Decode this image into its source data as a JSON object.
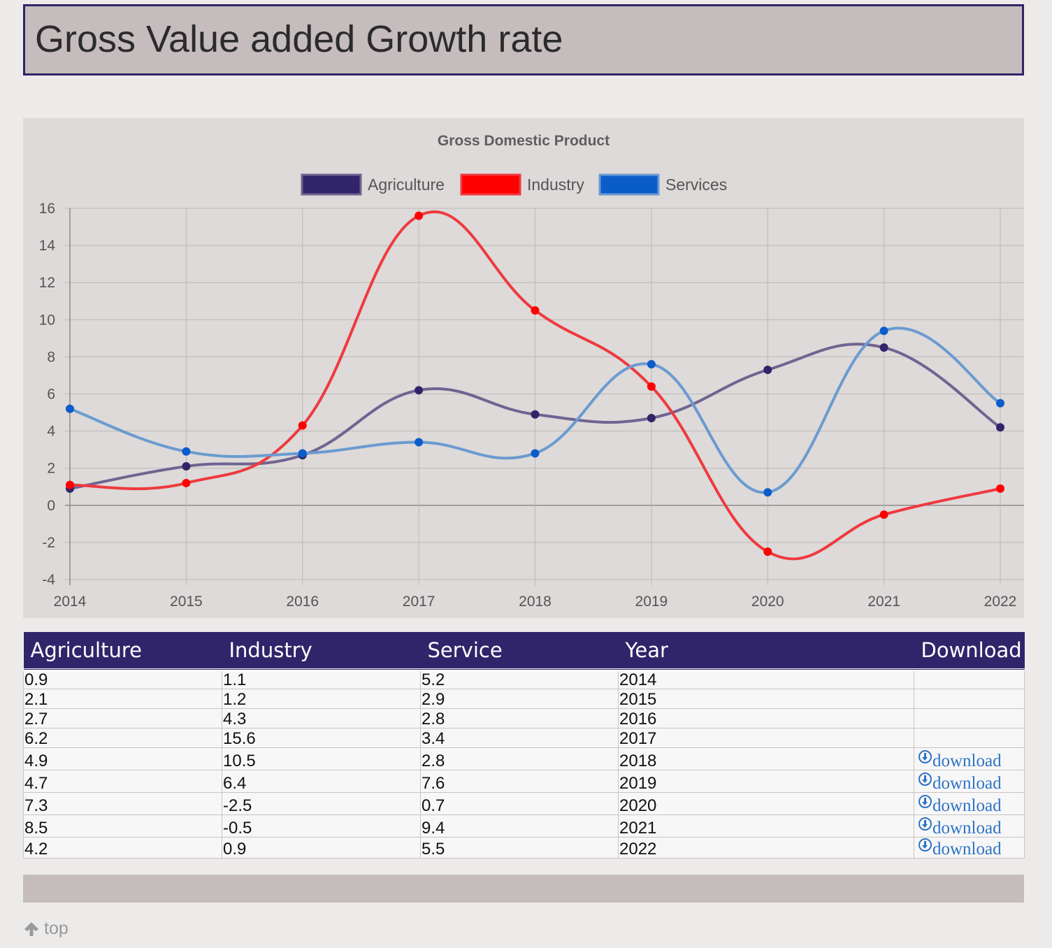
{
  "header": {
    "title": "Gross Value added Growth rate"
  },
  "chart_data": {
    "type": "line",
    "title": "Gross Domestic Product",
    "categories": [
      "2014",
      "2015",
      "2016",
      "2017",
      "2018",
      "2019",
      "2020",
      "2021",
      "2022"
    ],
    "series": [
      {
        "name": "Agriculture",
        "values": [
          0.9,
          2.1,
          2.7,
          6.2,
          4.9,
          4.7,
          7.3,
          8.5,
          4.2
        ],
        "color": "#30256a",
        "line_color": "#716391"
      },
      {
        "name": "Industry",
        "values": [
          1.1,
          1.2,
          4.3,
          15.6,
          10.5,
          6.4,
          -2.5,
          -0.5,
          0.9
        ],
        "color": "#ff0000",
        "line_color": "#ef3a3f"
      },
      {
        "name": "Services",
        "values": [
          5.2,
          2.9,
          2.8,
          3.4,
          2.8,
          7.6,
          0.7,
          9.4,
          5.5
        ],
        "color": "#0b5ccb",
        "line_color": "#6b9bd0"
      }
    ],
    "ylim": [
      -4,
      16
    ],
    "yticks": [
      -4,
      -2,
      0,
      2,
      4,
      6,
      8,
      10,
      12,
      14,
      16
    ],
    "xlabel": "",
    "ylabel": "",
    "grid": true,
    "legend": "top"
  },
  "table": {
    "headers": [
      "Agriculture",
      "Industry",
      "Service",
      "Year",
      "Download"
    ],
    "rows": [
      {
        "agriculture": "0.9",
        "industry": "1.1",
        "service": "5.2",
        "year": "2014",
        "download": ""
      },
      {
        "agriculture": "2.1",
        "industry": "1.2",
        "service": "2.9",
        "year": "2015",
        "download": ""
      },
      {
        "agriculture": "2.7",
        "industry": "4.3",
        "service": "2.8",
        "year": "2016",
        "download": ""
      },
      {
        "agriculture": "6.2",
        "industry": "15.6",
        "service": "3.4",
        "year": "2017",
        "download": ""
      },
      {
        "agriculture": "4.9",
        "industry": "10.5",
        "service": "2.8",
        "year": "2018",
        "download": "download"
      },
      {
        "agriculture": "4.7",
        "industry": "6.4",
        "service": "7.6",
        "year": "2019",
        "download": "download"
      },
      {
        "agriculture": "7.3",
        "industry": "-2.5",
        "service": "0.7",
        "year": "2020",
        "download": "download"
      },
      {
        "agriculture": "8.5",
        "industry": "-0.5",
        "service": "9.4",
        "year": "2021",
        "download": "download"
      },
      {
        "agriculture": "4.2",
        "industry": "0.9",
        "service": "5.5",
        "year": "2022",
        "download": "download"
      }
    ]
  },
  "footer": {
    "top_link_label": "top"
  },
  "icons": {
    "download": "download-circle-icon",
    "top": "arrow-up-icon"
  }
}
